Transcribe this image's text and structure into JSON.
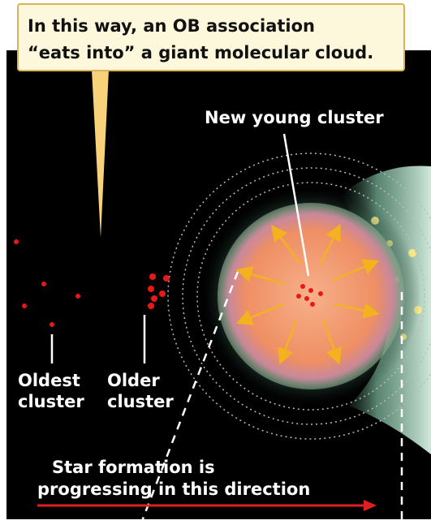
{
  "callout": {
    "lines": [
      "In this way, an OB association",
      "“eats into” a giant molecular cloud."
    ]
  },
  "labels": {
    "new_young_cluster": "New young cluster",
    "oldest_cluster": [
      "Oldest",
      "cluster"
    ],
    "older_cluster": [
      "Older",
      "cluster"
    ],
    "direction": [
      "Star formation is",
      "progressing in this direction"
    ]
  }
}
